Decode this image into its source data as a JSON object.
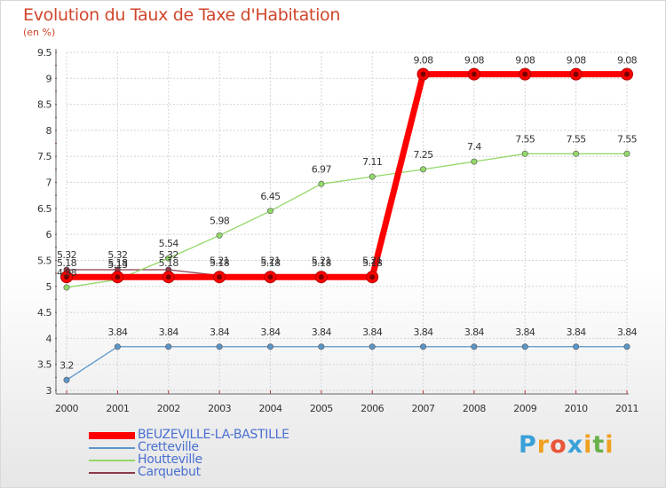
{
  "chart_data": {
    "type": "line",
    "title": "Evolution du Taux de Taxe d'Habitation",
    "unit_label": "(en %)",
    "xlabel": "",
    "ylabel": "",
    "categories": [
      "2000",
      "2001",
      "2002",
      "2003",
      "2004",
      "2005",
      "2006",
      "2007",
      "2008",
      "2009",
      "2010",
      "2011"
    ],
    "ylim": [
      3,
      9.5
    ],
    "yticks": [
      "3",
      "3.5",
      "4",
      "4.5",
      "5",
      "5.5",
      "6",
      "6.5",
      "7",
      "7.5",
      "8",
      "8.5",
      "9",
      "9.5"
    ],
    "grid": true,
    "series": [
      {
        "name": "BEUZEVILLE-LA-BASTILLE",
        "color": "#ff0000",
        "values": [
          5.18,
          5.18,
          5.18,
          5.18,
          5.18,
          5.18,
          5.18,
          9.08,
          9.08,
          9.08,
          9.08,
          9.08
        ],
        "labels": [
          "5.18",
          "5.18",
          "5.18",
          "5.18",
          "5.18",
          "5.18",
          "5.18",
          "9.08",
          "9.08",
          "9.08",
          "9.08",
          "9.08"
        ]
      },
      {
        "name": "Cretteville",
        "color": "#5b95c8",
        "values": [
          3.2,
          3.84,
          3.84,
          3.84,
          3.84,
          3.84,
          3.84,
          3.84,
          3.84,
          3.84,
          3.84,
          3.84
        ],
        "labels": [
          "3.2",
          "3.84",
          "3.84",
          "3.84",
          "3.84",
          "3.84",
          "3.84",
          "3.84",
          "3.84",
          "3.84",
          "3.84",
          "3.84"
        ]
      },
      {
        "name": "Houtteville",
        "color": "#93d86a",
        "values": [
          4.98,
          5.13,
          5.54,
          5.98,
          6.45,
          6.97,
          7.11,
          7.25,
          7.4,
          7.55,
          7.55,
          7.55
        ],
        "labels": [
          "4.98",
          "5.13",
          "5.54",
          "5.98",
          "6.45",
          "6.97",
          "7.11",
          "7.25",
          "7.4",
          "7.55",
          "7.55",
          "7.55"
        ]
      },
      {
        "name": "Carquebut",
        "color": "#8b3a4a",
        "values": [
          5.32,
          5.32,
          5.32,
          5.21,
          5.21,
          5.21,
          5.21,
          null,
          null,
          null,
          null,
          null
        ],
        "labels": [
          "5.32",
          "5.32",
          "5.32",
          "5.21",
          "5.21",
          "5.21",
          "5.21",
          "",
          "",
          "",
          "",
          ""
        ]
      }
    ]
  },
  "legend": {
    "items": [
      {
        "name": "BEUZEVILLE-LA-BASTILLE",
        "color": "#ff0000",
        "text_color": "#4a6fd0"
      },
      {
        "name": "Cretteville",
        "color": "#5b95c8",
        "text_color": "#4a6fd0"
      },
      {
        "name": "Houtteville",
        "color": "#93d86a",
        "text_color": "#4a6fd0"
      },
      {
        "name": "Carquebut",
        "color": "#8b3a4a",
        "text_color": "#4a6fd0"
      }
    ]
  },
  "logo": {
    "p": "P",
    "r": "r",
    "o": "o",
    "x": "x",
    "i": "i",
    "t": "t"
  }
}
